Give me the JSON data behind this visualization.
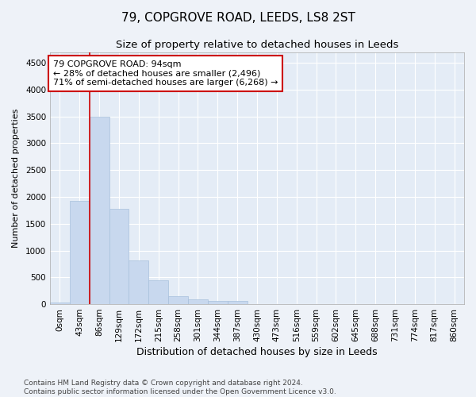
{
  "title1": "79, COPGROVE ROAD, LEEDS, LS8 2ST",
  "title2": "Size of property relative to detached houses in Leeds",
  "xlabel": "Distribution of detached houses by size in Leeds",
  "ylabel": "Number of detached properties",
  "categories": [
    "0sqm",
    "43sqm",
    "86sqm",
    "129sqm",
    "172sqm",
    "215sqm",
    "258sqm",
    "301sqm",
    "344sqm",
    "387sqm",
    "430sqm",
    "473sqm",
    "516sqm",
    "559sqm",
    "602sqm",
    "645sqm",
    "688sqm",
    "731sqm",
    "774sqm",
    "817sqm",
    "860sqm"
  ],
  "values": [
    30,
    1920,
    3500,
    1780,
    820,
    450,
    155,
    90,
    65,
    55,
    0,
    0,
    0,
    0,
    0,
    0,
    0,
    0,
    0,
    0,
    0
  ],
  "bar_color": "#c8d8ee",
  "bar_edge_color": "#a8c0dc",
  "vline_x": 2.0,
  "vline_color": "#cc0000",
  "annotation_text": "79 COPGROVE ROAD: 94sqm\n← 28% of detached houses are smaller (2,496)\n71% of semi-detached houses are larger (6,268) →",
  "annotation_box_color": "#ffffff",
  "annotation_box_edge_color": "#cc0000",
  "annotation_fontsize": 8,
  "ylim": [
    0,
    4700
  ],
  "yticks": [
    0,
    500,
    1000,
    1500,
    2000,
    2500,
    3000,
    3500,
    4000,
    4500
  ],
  "title1_fontsize": 11,
  "title2_fontsize": 9.5,
  "xlabel_fontsize": 9,
  "ylabel_fontsize": 8,
  "tick_fontsize": 7.5,
  "footer_text": "Contains HM Land Registry data © Crown copyright and database right 2024.\nContains public sector information licensed under the Open Government Licence v3.0.",
  "footer_fontsize": 6.5,
  "bg_color": "#eef2f8",
  "plot_bg_color": "#e4ecf6",
  "grid_color": "#ffffff",
  "spine_color": "#aaaaaa"
}
